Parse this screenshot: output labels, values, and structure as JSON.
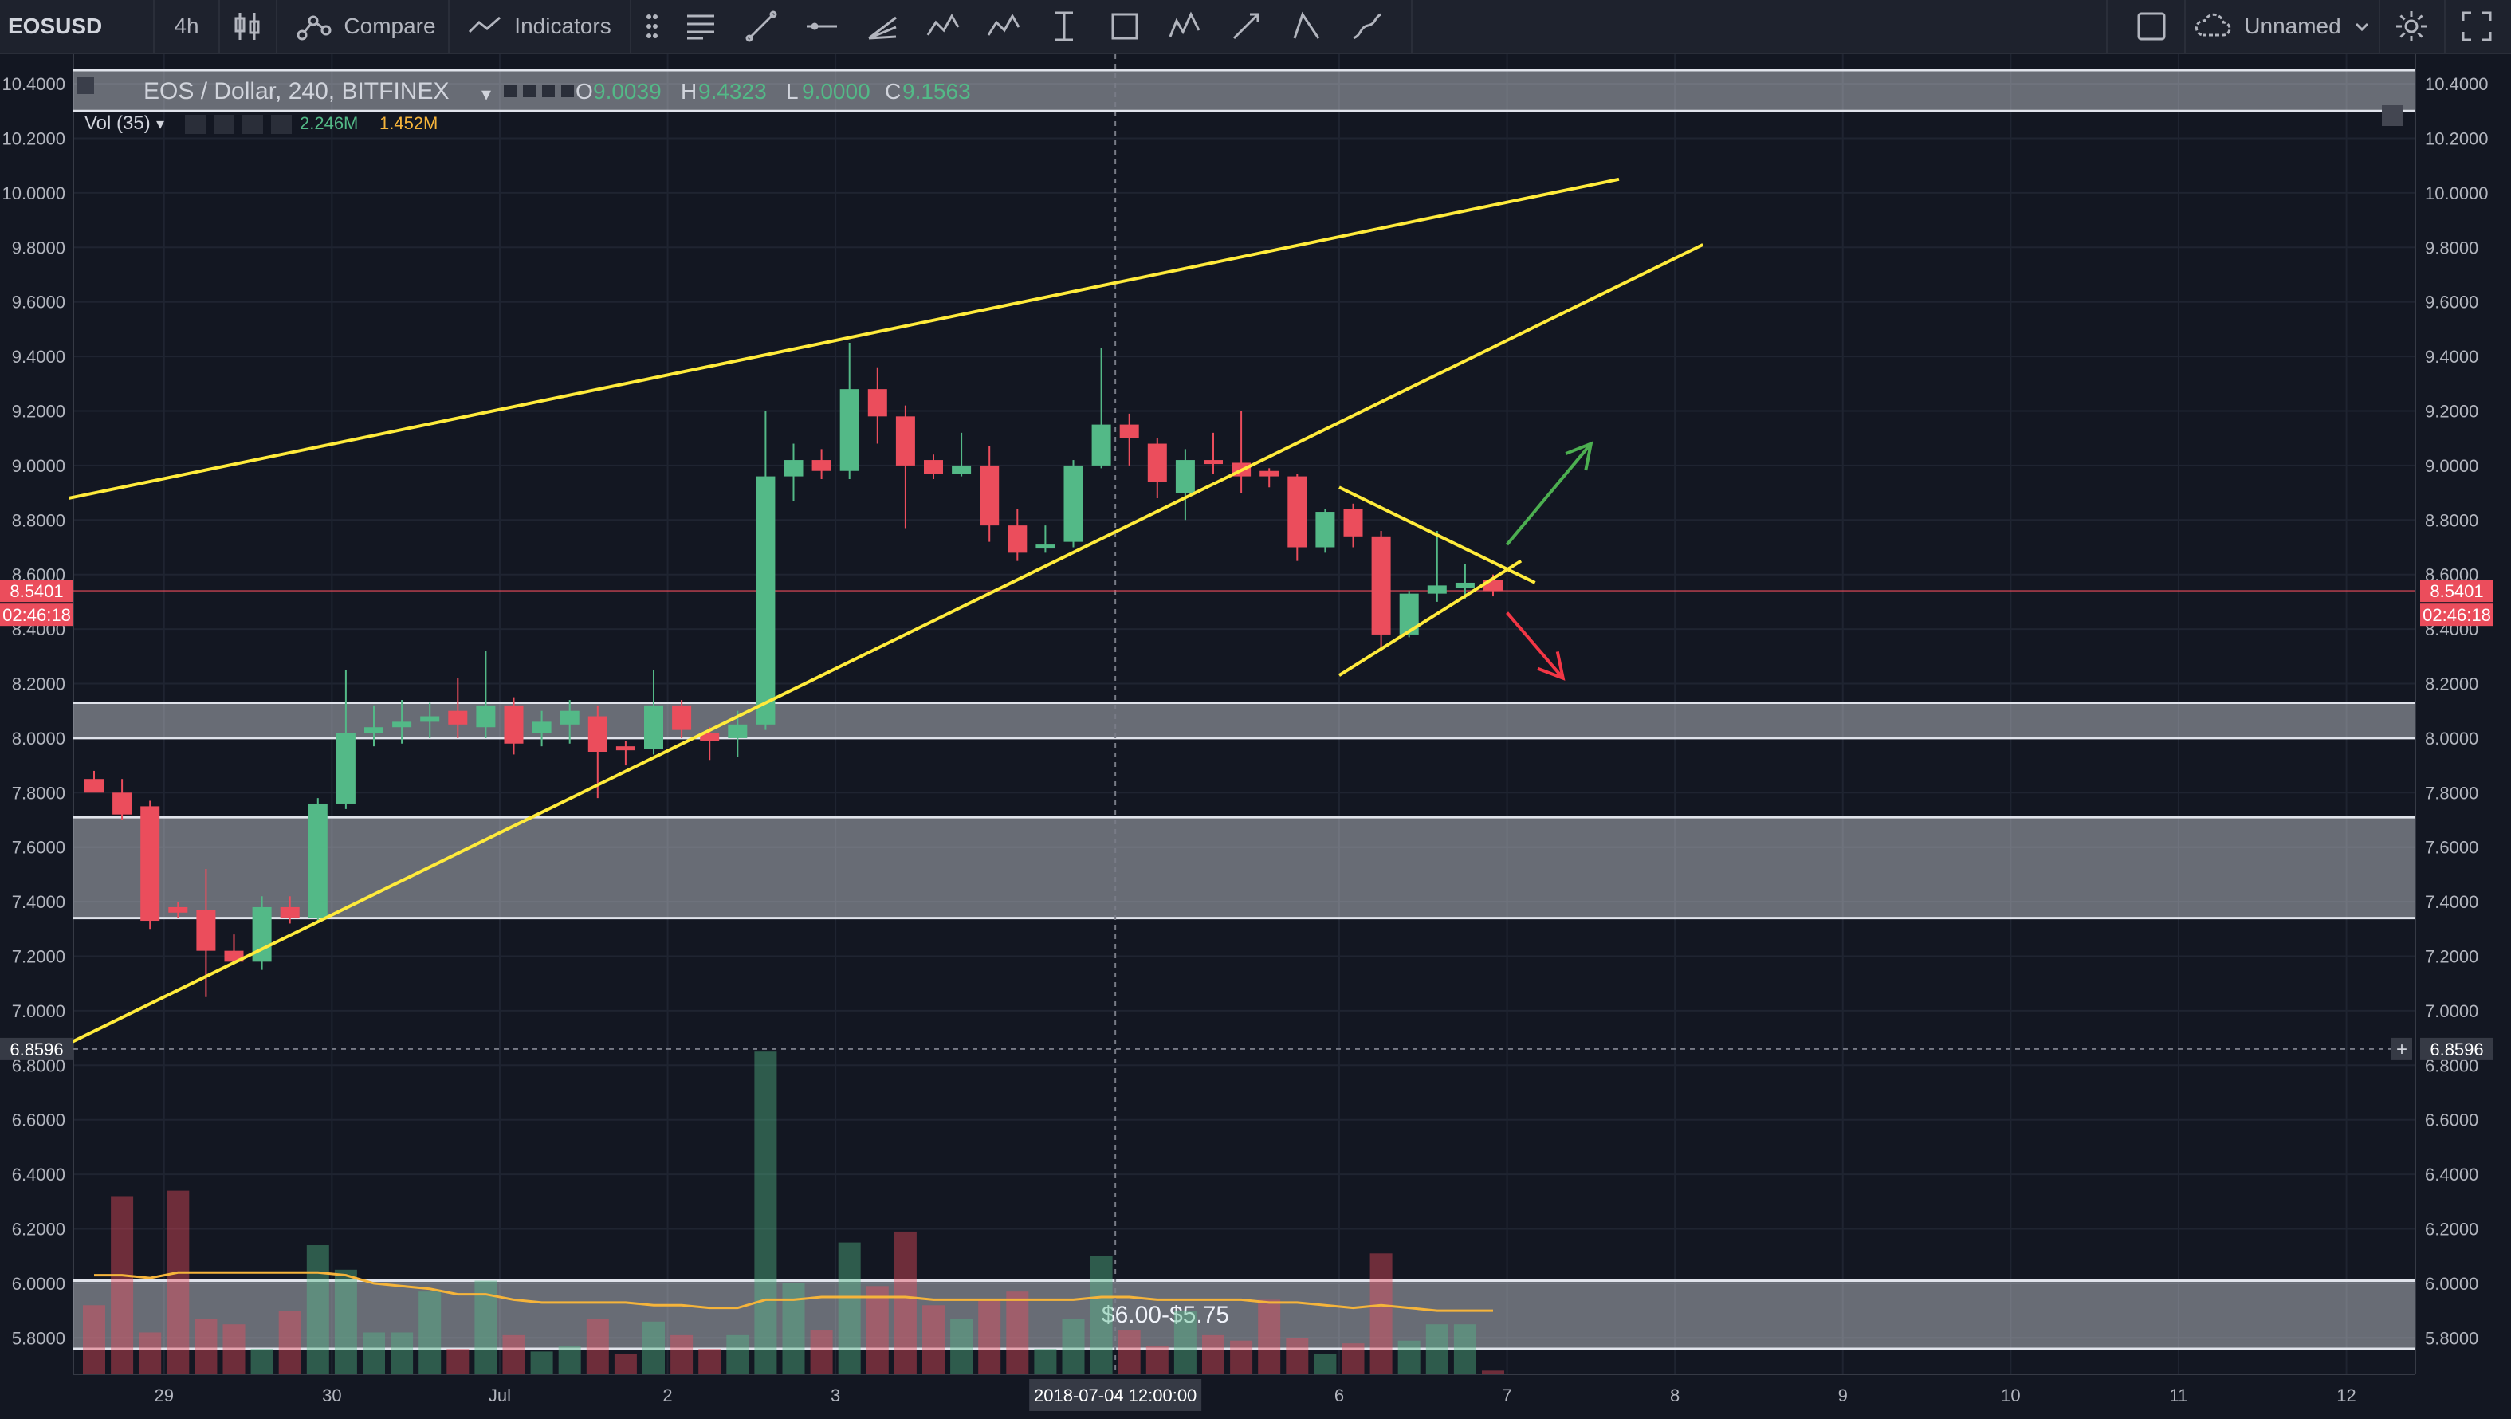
{
  "toolbar": {
    "symbol": "EOSUSD",
    "interval": "4h",
    "compare_label": "Compare",
    "indicators_label": "Indicators",
    "layout_name": "Unnamed",
    "drawing_tools": [
      "horizontal-lines-icon",
      "trend-line-icon",
      "horizontal-ray-icon",
      "pitchfork-icon",
      "pattern-icon",
      "abcd-pattern-icon",
      "long-position-icon",
      "rectangle-icon",
      "elliott-wave-icon",
      "arrow-icon",
      "path-icon",
      "brush-icon"
    ]
  },
  "legend": {
    "title": "EOS / Dollar, 240, BITFINEX",
    "o_label": "O",
    "o_value": "9.0039",
    "h_label": "H",
    "h_value": "9.4323",
    "l_label": "L",
    "l_value": "9.0000",
    "c_label": "C",
    "c_value": "9.1563",
    "vol_label": "Vol (35)",
    "vol_value": "2.246M",
    "vol_ma_value": "1.452M"
  },
  "colors": {
    "up": "#53b987",
    "down": "#eb4d5c",
    "trend": "#ffeb3b",
    "zone": "#d1d4dc",
    "arrow_up": "#4caf50",
    "arrow_down": "#f23645",
    "vol_ma": "#f5b43b"
  },
  "chart_data": {
    "type": "candlestick",
    "title": "EOS / Dollar, 240, BITFINEX",
    "ylim": [
      5.65,
      10.45
    ],
    "x_tick_labels": [
      {
        "i": 2.5,
        "label": "29"
      },
      {
        "i": 8.5,
        "label": "30"
      },
      {
        "i": 14.5,
        "label": "Jul"
      },
      {
        "i": 20.5,
        "label": "2"
      },
      {
        "i": 26.5,
        "label": "3"
      },
      {
        "i": 44.5,
        "label": "6"
      },
      {
        "i": 50.5,
        "label": "7"
      },
      {
        "i": 56.5,
        "label": "8"
      },
      {
        "i": 62.5,
        "label": "9"
      },
      {
        "i": 68.5,
        "label": "10"
      },
      {
        "i": 74.5,
        "label": "11"
      },
      {
        "i": 80.5,
        "label": "12"
      }
    ],
    "y_ticks": [
      5.8,
      6.0,
      6.2,
      6.4,
      6.6,
      6.8,
      7.0,
      7.2,
      7.4,
      7.6,
      7.8,
      8.0,
      8.2,
      8.4,
      8.6,
      8.8,
      9.0,
      9.2,
      9.4,
      9.6,
      9.8,
      10.0,
      10.2,
      10.4
    ],
    "last_price": {
      "value": 8.5401,
      "label": "8.5401",
      "countdown": "02:46:18"
    },
    "crosshair": {
      "index": 36.5,
      "price": 6.8596,
      "price_label": "6.8596",
      "time_label": "2018-07-04 12:00:00"
    },
    "candles": [
      [
        7.85,
        7.88,
        7.82,
        7.8
      ],
      [
        7.8,
        7.85,
        7.7,
        7.72
      ],
      [
        7.75,
        7.77,
        7.3,
        7.33
      ],
      [
        7.38,
        7.4,
        7.34,
        7.36
      ],
      [
        7.37,
        7.52,
        7.05,
        7.22
      ],
      [
        7.22,
        7.28,
        7.17,
        7.18
      ],
      [
        7.18,
        7.42,
        7.15,
        7.38
      ],
      [
        7.38,
        7.42,
        7.32,
        7.34
      ],
      [
        7.34,
        7.78,
        7.33,
        7.76
      ],
      [
        7.76,
        8.25,
        7.74,
        8.02
      ],
      [
        8.02,
        8.12,
        7.97,
        8.04
      ],
      [
        8.04,
        8.14,
        7.98,
        8.06
      ],
      [
        8.06,
        8.13,
        8.0,
        8.08
      ],
      [
        8.1,
        8.22,
        8.0,
        8.05
      ],
      [
        8.04,
        8.32,
        8.0,
        8.12
      ],
      [
        8.12,
        8.15,
        7.94,
        7.98
      ],
      [
        8.02,
        8.1,
        7.97,
        8.06
      ],
      [
        8.05,
        8.14,
        7.98,
        8.1
      ],
      [
        8.08,
        8.12,
        7.78,
        7.95
      ],
      [
        7.97,
        7.99,
        7.9,
        7.96
      ],
      [
        7.96,
        8.25,
        7.94,
        8.12
      ],
      [
        8.12,
        8.14,
        8.0,
        8.03
      ],
      [
        8.02,
        8.04,
        7.92,
        7.99
      ],
      [
        8.0,
        8.1,
        7.93,
        8.05
      ],
      [
        8.05,
        9.2,
        8.03,
        8.96
      ],
      [
        8.96,
        9.08,
        8.87,
        9.02
      ],
      [
        9.02,
        9.06,
        8.95,
        8.98
      ],
      [
        8.98,
        9.45,
        8.95,
        9.28
      ],
      [
        9.28,
        9.36,
        9.08,
        9.18
      ],
      [
        9.18,
        9.22,
        8.77,
        9.0
      ],
      [
        9.02,
        9.04,
        8.95,
        8.97
      ],
      [
        8.97,
        9.12,
        8.96,
        9.0
      ],
      [
        9.0,
        9.07,
        8.72,
        8.78
      ],
      [
        8.78,
        8.84,
        8.65,
        8.68
      ],
      [
        8.7,
        8.78,
        8.68,
        8.71
      ],
      [
        8.72,
        9.02,
        8.7,
        9.0
      ],
      [
        9.0,
        9.43,
        8.99,
        9.15
      ],
      [
        9.15,
        9.19,
        9.0,
        9.1
      ],
      [
        9.08,
        9.1,
        8.88,
        8.94
      ],
      [
        8.9,
        9.06,
        8.8,
        9.02
      ],
      [
        9.02,
        9.12,
        8.97,
        9.01
      ],
      [
        9.01,
        9.2,
        8.9,
        8.96
      ],
      [
        8.98,
        8.99,
        8.92,
        8.96
      ],
      [
        8.96,
        8.97,
        8.65,
        8.7
      ],
      [
        8.7,
        8.84,
        8.68,
        8.83
      ],
      [
        8.84,
        8.86,
        8.7,
        8.74
      ],
      [
        8.74,
        8.76,
        8.32,
        8.38
      ],
      [
        8.38,
        8.54,
        8.37,
        8.53
      ],
      [
        8.53,
        8.76,
        8.5,
        8.56
      ],
      [
        8.55,
        8.64,
        8.51,
        8.57
      ],
      [
        8.58,
        8.6,
        8.52,
        8.54
      ]
    ],
    "volume_bar_tops": [
      5.92,
      6.32,
      5.82,
      6.34,
      5.87,
      5.85,
      5.76,
      5.9,
      6.14,
      6.05,
      5.82,
      5.82,
      5.97,
      5.76,
      6.01,
      5.81,
      5.75,
      5.77,
      5.87,
      5.74,
      5.86,
      5.81,
      5.76,
      5.81,
      6.85,
      6.0,
      5.83,
      6.15,
      5.99,
      6.19,
      5.92,
      5.87,
      5.94,
      5.97,
      5.76,
      5.87,
      6.1,
      5.83,
      5.77,
      5.9,
      5.81,
      5.79,
      5.94,
      5.8,
      5.74,
      5.78,
      6.11,
      5.79,
      5.85,
      5.85,
      5.68
    ],
    "volume_ma": [
      6.03,
      6.03,
      6.02,
      6.04,
      6.04,
      6.04,
      6.04,
      6.04,
      6.04,
      6.03,
      6.0,
      5.99,
      5.98,
      5.96,
      5.96,
      5.94,
      5.93,
      5.93,
      5.93,
      5.93,
      5.92,
      5.92,
      5.91,
      5.91,
      5.94,
      5.94,
      5.95,
      5.95,
      5.95,
      5.95,
      5.94,
      5.94,
      5.94,
      5.94,
      5.94,
      5.94,
      5.95,
      5.95,
      5.94,
      5.94,
      5.94,
      5.94,
      5.93,
      5.93,
      5.92,
      5.91,
      5.92,
      5.91,
      5.9,
      5.9,
      5.9
    ],
    "zones": [
      {
        "y1": 10.3,
        "y2": 10.45,
        "label": ""
      },
      {
        "y1": 8.0,
        "y2": 8.13,
        "label": ""
      },
      {
        "y1": 7.34,
        "y2": 7.71,
        "label": ""
      },
      {
        "y1": 5.76,
        "y2": 6.01,
        "label": "$6.00-$5.75"
      }
    ],
    "trend_lines": [
      {
        "i1": -0.9,
        "y1": 8.88,
        "i2": 54.5,
        "y2": 10.05
      },
      {
        "i1": -0.9,
        "y1": 6.88,
        "i2": 57.5,
        "y2": 9.81
      },
      {
        "i1": 44.5,
        "y1": 8.92,
        "i2": 51.5,
        "y2": 8.57
      },
      {
        "i1": 44.5,
        "y1": 8.23,
        "i2": 51.0,
        "y2": 8.65
      }
    ],
    "arrows": [
      {
        "i1": 50.5,
        "y1": 8.71,
        "i2": 53.5,
        "y2": 9.08,
        "kind": "up"
      },
      {
        "i1": 50.5,
        "y1": 8.46,
        "i2": 52.5,
        "y2": 8.22,
        "kind": "down"
      }
    ]
  }
}
